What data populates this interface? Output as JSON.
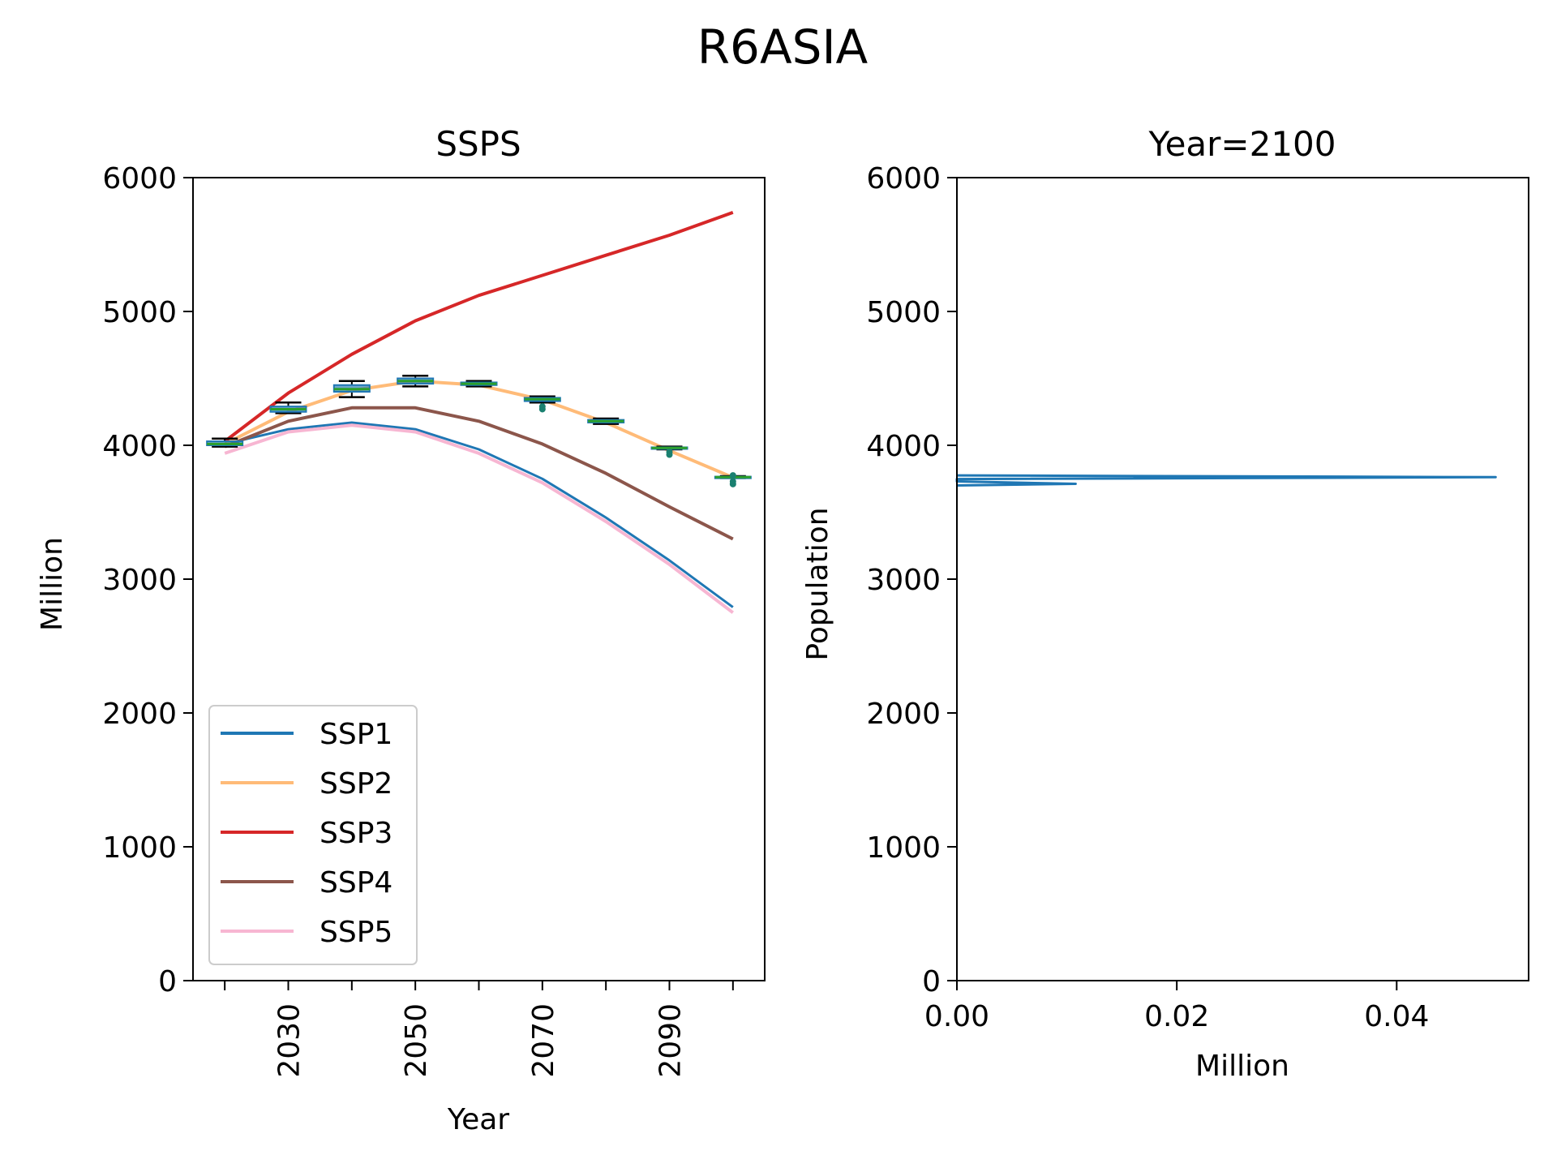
{
  "chart_data": {
    "title": "R6ASIA",
    "panels": [
      {
        "type": "line",
        "title": "SSPS",
        "xlabel": "Year",
        "ylabel": "Million",
        "xlim": [
          2015,
          2105
        ],
        "ylim": [
          0,
          6000
        ],
        "xticks": [
          2020,
          2030,
          2040,
          2050,
          2060,
          2070,
          2080,
          2090,
          2100
        ],
        "xtick_labels": [
          "",
          "2030",
          "",
          "2050",
          "",
          "2070",
          "",
          "2090",
          ""
        ],
        "yticks": [
          0,
          1000,
          2000,
          3000,
          4000,
          5000,
          6000
        ],
        "legend": "lower-left",
        "grid": false,
        "x": [
          2020,
          2030,
          2040,
          2050,
          2060,
          2070,
          2080,
          2090,
          2100
        ],
        "series": [
          {
            "name": "SSP1",
            "color": "#1f77b4",
            "values": [
              4010,
              4120,
              4170,
              4120,
              3970,
              3750,
              3460,
              3140,
              2790
            ]
          },
          {
            "name": "SSP2",
            "color": "#ffbb78",
            "values": [
              4010,
              4250,
              4410,
              4480,
              4450,
              4340,
              4170,
              3960,
              3760
            ]
          },
          {
            "name": "SSP3",
            "color": "#d62728",
            "values": [
              4030,
              4390,
              4680,
              4930,
              5120,
              5270,
              5420,
              5570,
              5740
            ]
          },
          {
            "name": "SSP4",
            "color": "#8c564b",
            "values": [
              3990,
              4180,
              4280,
              4280,
              4180,
              4010,
              3790,
              3540,
              3300
            ]
          },
          {
            "name": "SSP5",
            "color": "#f7b6d2",
            "values": [
              3940,
              4100,
              4150,
              4100,
              3940,
              3720,
              3430,
              3110,
              2750
            ]
          }
        ],
        "boxplots": [
          {
            "x": 2020,
            "whisker_low": 3990,
            "q1": 4000,
            "median": 4010,
            "q3": 4030,
            "whisker_high": 4050,
            "outliers": []
          },
          {
            "x": 2030,
            "whisker_low": 4240,
            "q1": 4250,
            "median": 4270,
            "q3": 4290,
            "whisker_high": 4320,
            "outliers": []
          },
          {
            "x": 2040,
            "whisker_low": 4360,
            "q1": 4400,
            "median": 4420,
            "q3": 4450,
            "whisker_high": 4480,
            "outliers": []
          },
          {
            "x": 2050,
            "whisker_low": 4440,
            "q1": 4460,
            "median": 4480,
            "q3": 4500,
            "whisker_high": 4520,
            "outliers": []
          },
          {
            "x": 2060,
            "whisker_low": 4440,
            "q1": 4450,
            "median": 4460,
            "q3": 4470,
            "whisker_high": 4480,
            "outliers": []
          },
          {
            "x": 2070,
            "whisker_low": 4320,
            "q1": 4330,
            "median": 4345,
            "q3": 4355,
            "whisker_high": 4365,
            "outliers": [
              4270,
              4290
            ]
          },
          {
            "x": 2080,
            "whisker_low": 4160,
            "q1": 4170,
            "median": 4180,
            "q3": 4190,
            "whisker_high": 4200,
            "outliers": []
          },
          {
            "x": 2090,
            "whisker_low": 3970,
            "q1": 3975,
            "median": 3980,
            "q3": 3985,
            "whisker_high": 3990,
            "outliers": [
              3930,
              3950
            ]
          },
          {
            "x": 2100,
            "whisker_low": 3755,
            "q1": 3758,
            "median": 3762,
            "q3": 3766,
            "whisker_high": 3770,
            "outliers": [
              3710,
              3730,
              3775
            ]
          }
        ]
      },
      {
        "type": "line",
        "title": "Year=2100",
        "xlabel": "Million",
        "ylabel": "Population",
        "xlim": [
          0,
          0.052
        ],
        "ylim": [
          0,
          6000
        ],
        "xticks": [
          0.0,
          0.02,
          0.04
        ],
        "xtick_labels": [
          "0.00",
          "0.02",
          "0.04"
        ],
        "yticks": [
          0,
          1000,
          2000,
          3000,
          4000,
          5000,
          6000
        ],
        "grid": false,
        "series": [
          {
            "color": "#1f77b4",
            "points": [
              [
                0.0,
                3775
              ],
              [
                0.049,
                3762
              ],
              [
                0.0,
                3748
              ],
              [
                0.0,
                3730
              ],
              [
                0.0108,
                3712
              ],
              [
                0.0,
                3700
              ]
            ]
          }
        ]
      }
    ]
  },
  "colors": {
    "box_face": "#1f77b4",
    "box_median": "#2ca02c",
    "box_outlier": "#1a8070",
    "whisker": "#000000"
  }
}
